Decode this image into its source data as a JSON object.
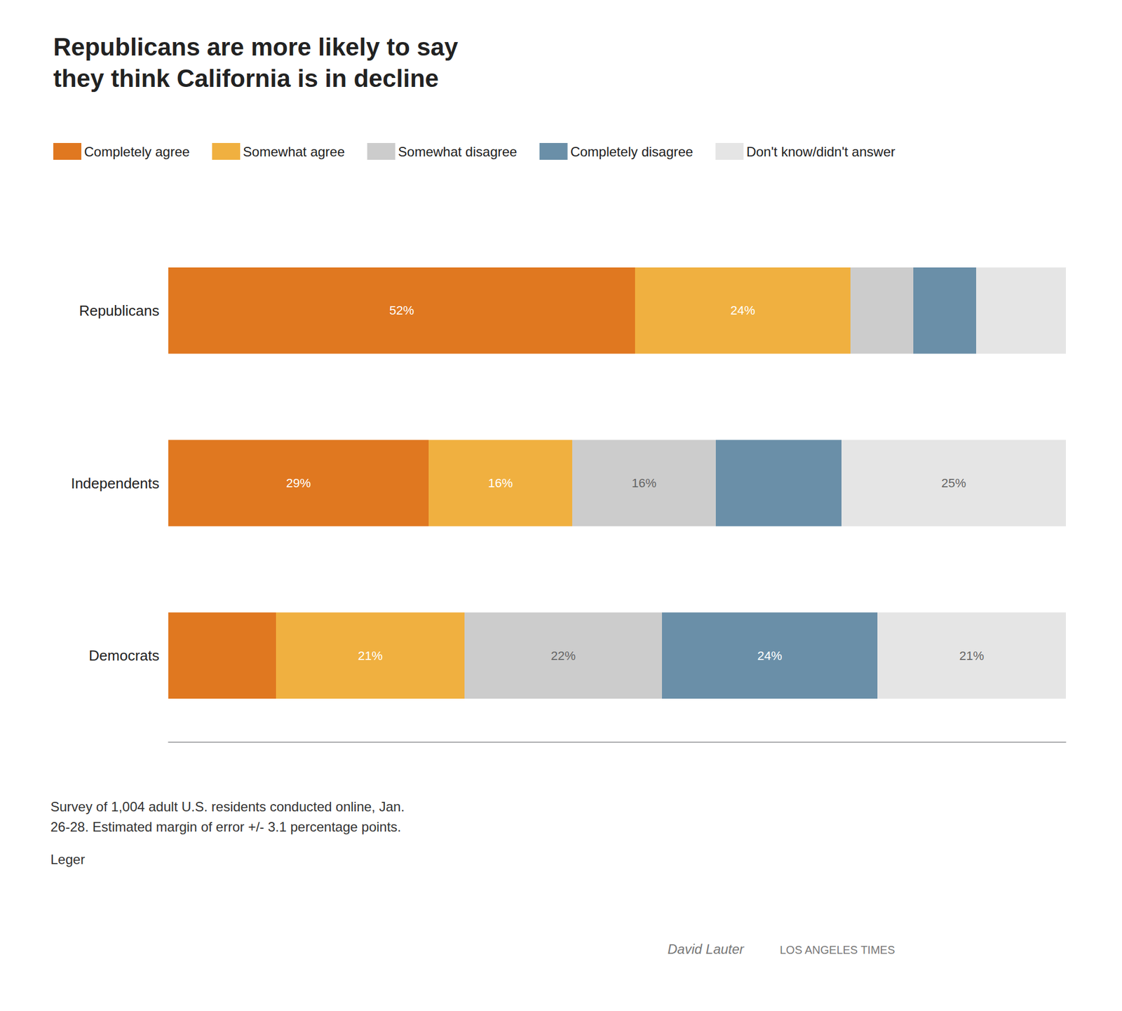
{
  "chart_data": {
    "type": "bar",
    "orientation": "horizontal",
    "stacked": true,
    "title": "Republicans are more likely to say\nthey think California is in decline",
    "categories": [
      "Republicans",
      "Independents",
      "Democrats"
    ],
    "series": [
      {
        "name": "Completely agree",
        "color": "#E07820",
        "values": [
          52,
          29,
          12
        ],
        "value_labels": [
          "52%",
          "29%",
          null
        ]
      },
      {
        "name": "Somewhat agree",
        "color": "#F0B040",
        "values": [
          24,
          16,
          21
        ],
        "value_labels": [
          "24%",
          "16%",
          "21%"
        ]
      },
      {
        "name": "Somewhat disagree",
        "color": "#CCCCCC",
        "values": [
          7,
          16,
          22
        ],
        "value_labels": [
          null,
          "16%",
          "22%"
        ]
      },
      {
        "name": "Completely disagree",
        "color": "#6A8FA8",
        "values": [
          7,
          14,
          24
        ],
        "value_labels": [
          null,
          null,
          "24%"
        ]
      },
      {
        "name": "Don't know/didn't answer",
        "color": "#E5E5E5",
        "values": [
          10,
          25,
          21
        ],
        "value_labels": [
          null,
          "25%",
          "21%"
        ]
      }
    ],
    "xlim": [
      0,
      100
    ],
    "xticks": [],
    "tick_labels": "y",
    "grid": false,
    "legend": "top",
    "data_labels": true,
    "annotations": [
      "Survey of 1,004 adult U.S. residents conducted online, Jan.\n26-28. Estimated margin of error +/- 3.1 percentage points.",
      "Leger",
      "David Lauter",
      "LOS ANGELES TIMES"
    ]
  }
}
